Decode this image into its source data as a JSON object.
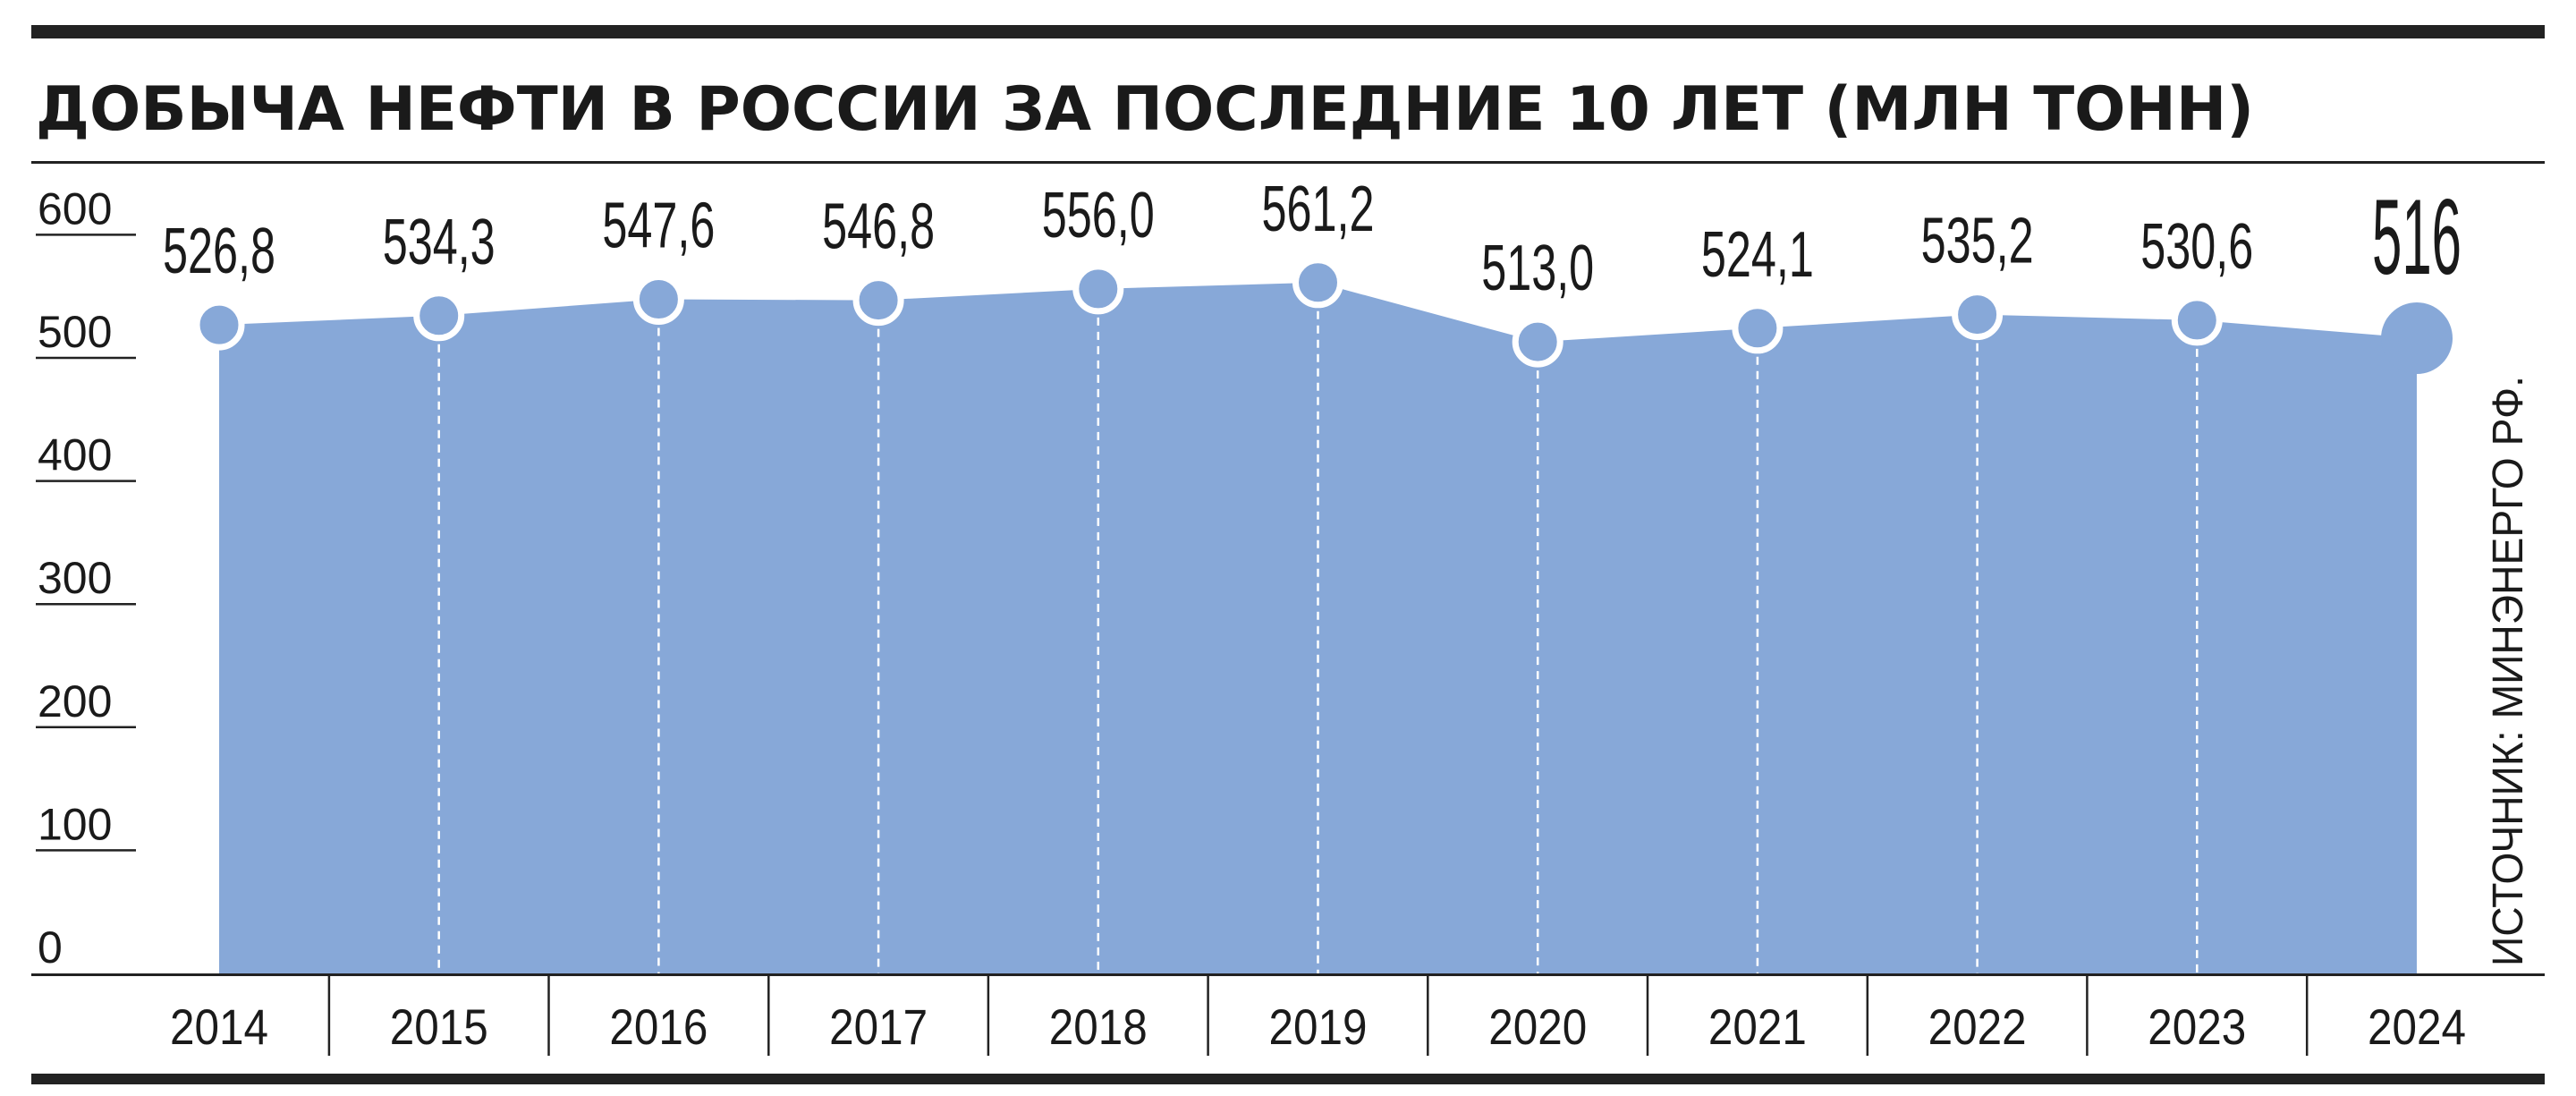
{
  "chart_data": {
    "type": "area",
    "title": "ДОБЫЧА НЕФТИ В РОССИИ ЗА ПОСЛЕДНИЕ 10 ЛЕТ (МЛН ТОНН)",
    "source": "ИСТОЧНИК: МИНЭНЕРГО РФ.",
    "categories": [
      "2014",
      "2015",
      "2016",
      "2017",
      "2018",
      "2019",
      "2020",
      "2021",
      "2022",
      "2023",
      "2024"
    ],
    "values": [
      526.8,
      534.3,
      547.6,
      546.8,
      556.0,
      561.2,
      513.0,
      524.1,
      535.2,
      530.6,
      516
    ],
    "value_labels": [
      "526,8",
      "534,3",
      "547,6",
      "546,8",
      "556,0",
      "561,2",
      "513,0",
      "524,1",
      "535,2",
      "530,6",
      "516"
    ],
    "yticks": [
      "0",
      "100",
      "200",
      "300",
      "400",
      "500",
      "600"
    ],
    "ylim": [
      0,
      600
    ],
    "grid": false,
    "colors": {
      "fill": "#87a8d8",
      "text": "#1a1a1a",
      "rule": "#222222"
    }
  }
}
